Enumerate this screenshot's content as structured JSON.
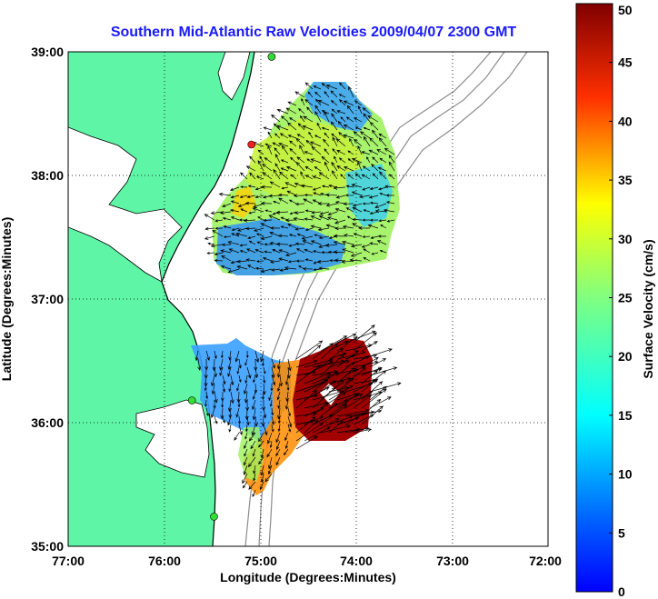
{
  "title": "Southern Mid-Atlantic Raw Velocities 2009/04/07 2300 GMT",
  "x_axis": {
    "label": "Longitude (Degrees:Minutes)",
    "ticks": [
      "77:00",
      "76:00",
      "75:00",
      "74:00",
      "73:00",
      "72:00"
    ],
    "range_deg_west": [
      77,
      72
    ]
  },
  "y_axis": {
    "label": "Latitude (Degrees:Minutes)",
    "ticks": [
      "39:00",
      "38:00",
      "37:00",
      "36:00",
      "35:00"
    ],
    "range_deg_north": [
      35,
      39
    ]
  },
  "colorbar": {
    "label": "Surface Velocity (cm/s)",
    "ticks": [
      "50",
      "45",
      "40",
      "35",
      "30",
      "25",
      "20",
      "15",
      "10",
      "5",
      "0"
    ],
    "range": [
      0,
      50
    ],
    "colormap": "jet"
  },
  "grid": "dotted",
  "colors": {
    "land": "#5ff5a6",
    "title": "#1a1aff",
    "coast_line": "#000000",
    "bathymetry": "#8c8c8c",
    "station_green": "#33dd33",
    "station_red": "#ee2222"
  },
  "stations": [
    {
      "lon": 74.88,
      "lat": 38.96,
      "color": "green"
    },
    {
      "lon": 75.09,
      "lat": 38.25,
      "color": "red"
    },
    {
      "lon": 75.71,
      "lat": 36.18,
      "color": "green"
    },
    {
      "lon": 75.48,
      "lat": 35.24,
      "color": "green"
    }
  ]
}
